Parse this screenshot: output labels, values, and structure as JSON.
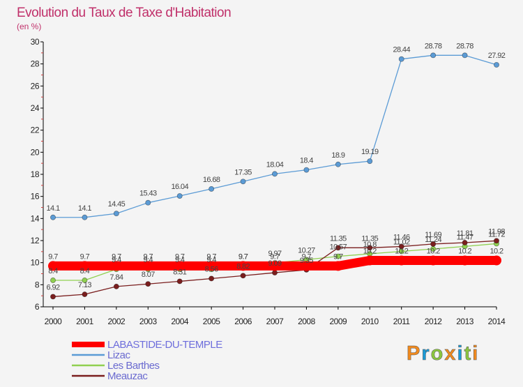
{
  "chart_data": {
    "type": "line",
    "title": "Evolution du Taux de Taxe d'Habitation",
    "subtitle": "(en %)",
    "x": [
      "2000",
      "2001",
      "2002",
      "2003",
      "2004",
      "2005",
      "2006",
      "2007",
      "2008",
      "2009",
      "2010",
      "2011",
      "2012",
      "2013",
      "2014"
    ],
    "ylim": [
      6,
      30
    ],
    "yticks": [
      "6",
      "8",
      "10",
      "12",
      "14",
      "16",
      "18",
      "20",
      "22",
      "24",
      "26",
      "28",
      "30"
    ],
    "grid": false,
    "legend_position": "bottom-left",
    "series": [
      {
        "name": "LABASTIDE-DU-TEMPLE",
        "color": "#ff0000",
        "values": [
          9.7,
          9.7,
          9.7,
          9.7,
          9.7,
          9.7,
          9.7,
          9.7,
          9.7,
          9.7,
          10.2,
          10.2,
          10.2,
          10.2,
          10.2
        ],
        "labels": [
          "9.7",
          "9.7",
          "9.7",
          "9.7",
          "9.7",
          "9.7",
          "9.7",
          "9.7",
          "9.7",
          "9.7",
          "10.2",
          "10.2",
          "10.2",
          "10.2",
          "10.2"
        ]
      },
      {
        "name": "Lizac",
        "color": "#5b9bd5",
        "values": [
          14.1,
          14.1,
          14.45,
          15.43,
          16.04,
          16.68,
          17.35,
          18.04,
          18.4,
          18.9,
          19.19,
          28.44,
          28.78,
          28.78,
          27.92
        ],
        "labels": [
          "14.1",
          "14.1",
          "14.45",
          "15.43",
          "16.04",
          "16.68",
          "17.35",
          "18.04",
          "18.4",
          "18.9",
          "19.19",
          "28.44",
          "28.78",
          "28.78",
          "27.92"
        ]
      },
      {
        "name": "Les Barthes",
        "color": "#90d050",
        "values": [
          8.4,
          8.4,
          9.4,
          9.4,
          9.4,
          9.4,
          9.7,
          9.97,
          10.27,
          10.57,
          10.8,
          11.02,
          11.24,
          11.47,
          11.72
        ],
        "labels": [
          "8.4",
          "8.4",
          "9.4",
          "9.4",
          "9.4",
          "9.4",
          "9.7",
          "9.97",
          "10.27",
          "10.57",
          "10.8",
          "11.02",
          "11.24",
          "11.47",
          "11.72"
        ]
      },
      {
        "name": "Meauzac",
        "color": "#7a1e1e",
        "values": [
          6.92,
          7.13,
          7.84,
          8.07,
          8.31,
          8.56,
          8.82,
          9.09,
          9.35,
          11.35,
          11.35,
          11.46,
          11.69,
          11.81,
          11.98
        ],
        "labels": [
          "6.92",
          "7.13",
          "7.84",
          "8.07",
          "8.31",
          "8.56",
          "8.82",
          "9.09",
          "9.35",
          "11.35",
          "11.35",
          "11.46",
          "11.69",
          "11.81",
          "11.98"
        ]
      }
    ]
  },
  "brand": {
    "text": "Proxiti",
    "colors": [
      "#f08a1e",
      "#1a9ad6",
      "#8cc63f"
    ]
  }
}
